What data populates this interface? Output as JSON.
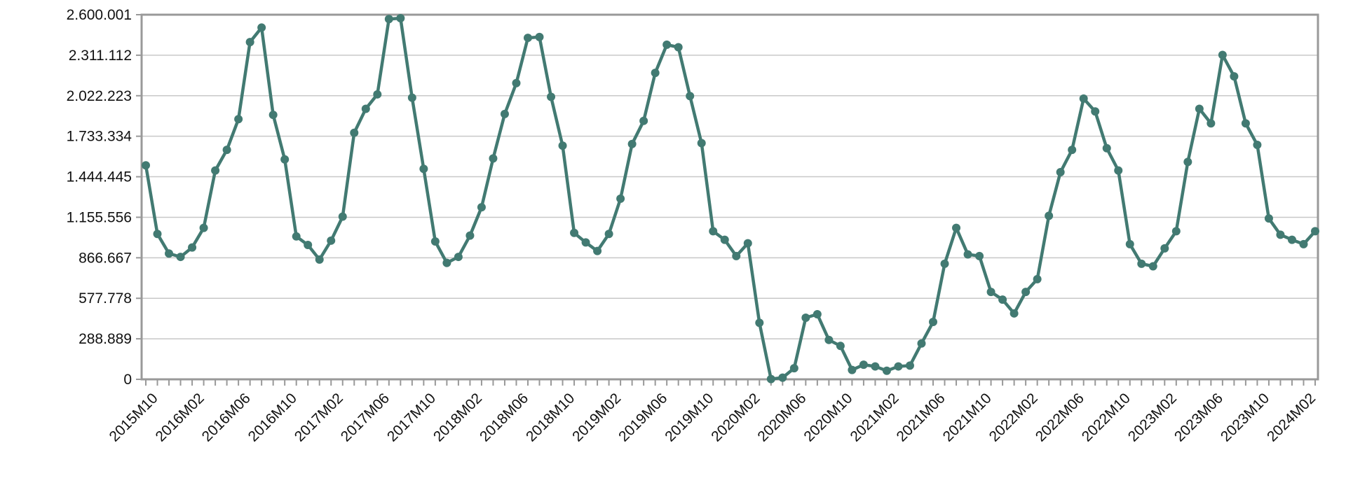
{
  "chart_data": {
    "type": "line",
    "categories": [
      "2015M10",
      null,
      null,
      null,
      "2016M02",
      null,
      null,
      null,
      "2016M06",
      null,
      null,
      null,
      "2016M10",
      null,
      null,
      null,
      "2017M02",
      null,
      null,
      null,
      "2017M06",
      null,
      null,
      null,
      "2017M10",
      null,
      null,
      null,
      "2018M02",
      null,
      null,
      null,
      "2018M06",
      null,
      null,
      null,
      "2018M10",
      null,
      null,
      null,
      "2019M02",
      null,
      null,
      null,
      "2019M06",
      null,
      null,
      null,
      "2019M10",
      null,
      null,
      null,
      "2020M02",
      null,
      null,
      null,
      "2020M06",
      null,
      null,
      null,
      "2020M10",
      null,
      null,
      null,
      "2021M02",
      null,
      null,
      null,
      "2021M06",
      null,
      null,
      null,
      "2021M10",
      null,
      null,
      null,
      "2022M02",
      null,
      null,
      null,
      "2022M06",
      null,
      null,
      null,
      "2022M10",
      null,
      null,
      null,
      "2023M02",
      null,
      null,
      null,
      "2023M06",
      null,
      null,
      null,
      "2023M10",
      null,
      null,
      null,
      "2024M02",
      null
    ],
    "values": [
      1526000,
      1037000,
      897000,
      873000,
      940000,
      1080000,
      1489000,
      1636000,
      1855000,
      2405000,
      2508000,
      1886000,
      1568000,
      1019000,
      958000,
      854000,
      989000,
      1160000,
      1758000,
      1929000,
      2032000,
      2569000,
      2575000,
      2008000,
      1501000,
      983000,
      830000,
      873000,
      1025000,
      1227000,
      1575000,
      1892000,
      2112000,
      2435000,
      2441000,
      2014000,
      1666000,
      1044000,
      976000,
      915000,
      1037000,
      1288000,
      1678000,
      1843000,
      2185000,
      2386000,
      2368000,
      2020000,
      1684000,
      1056000,
      995000,
      879000,
      970000,
      403000,
      2000,
      12000,
      79000,
      439000,
      464000,
      281000,
      238000,
      67000,
      104000,
      92000,
      61000,
      92000,
      98000,
      256000,
      409000,
      824000,
      1080000,
      891000,
      879000,
      623000,
      568000,
      470000,
      623000,
      714000,
      1166000,
      1477000,
      1636000,
      2002000,
      1910000,
      1648000,
      1489000,
      964000,
      824000,
      806000,
      934000,
      1056000,
      1550000,
      1929000,
      1825000,
      2313000,
      2160000,
      1825000,
      1672000,
      1147000,
      1031000,
      995000,
      964000,
      1056000
    ],
    "color": "#427a72",
    "ylim": [
      0,
      2600001
    ],
    "yticks": [
      0,
      {
        "value": 288889,
        "label": "288.889"
      },
      {
        "value": 577778,
        "label": "577.778"
      },
      {
        "value": 866667,
        "label": "866.667"
      },
      {
        "value": 1155556,
        "label": "1.155.556"
      },
      {
        "value": 1444445,
        "label": "1.444.445"
      },
      {
        "value": 1733334,
        "label": "1.733.334"
      },
      {
        "value": 2022223,
        "label": "2.022.223"
      },
      {
        "value": 2311112,
        "label": "2.311.112"
      },
      {
        "value": 2600001,
        "label": "2.600.001"
      }
    ],
    "grid": true
  }
}
